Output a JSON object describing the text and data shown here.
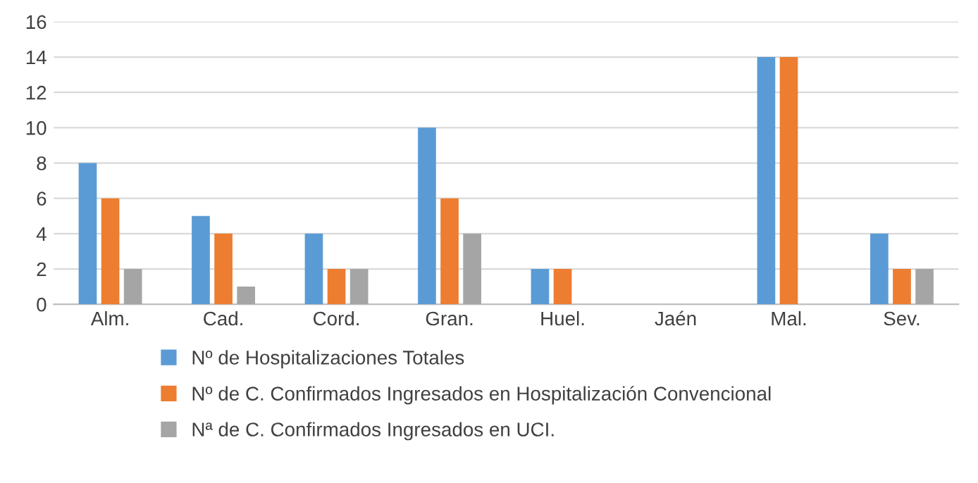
{
  "chart_data": {
    "type": "bar",
    "categories": [
      "Alm.",
      "Cad.",
      "Cord.",
      "Gran.",
      "Huel.",
      "Jaén",
      "Mal.",
      "Sev."
    ],
    "series": [
      {
        "name": "Nº de Hospitalizaciones Totales",
        "color": "#5b9bd5",
        "values": [
          8,
          5,
          4,
          10,
          2,
          0,
          14,
          4
        ]
      },
      {
        "name": "Nº de C. Confirmados Ingresados en Hospitalización Convencional",
        "color": "#ed7d31",
        "values": [
          6,
          4,
          2,
          6,
          2,
          0,
          14,
          2
        ]
      },
      {
        "name": "Nª de C. Confirmados Ingresados en UCI.",
        "color": "#a5a5a5",
        "values": [
          2,
          1,
          2,
          4,
          0,
          0,
          0,
          2
        ]
      }
    ],
    "ylim": [
      0,
      16
    ],
    "yticks": [
      0,
      2,
      4,
      6,
      8,
      10,
      12,
      14,
      16
    ],
    "grid": "y",
    "legend": "bottom"
  }
}
